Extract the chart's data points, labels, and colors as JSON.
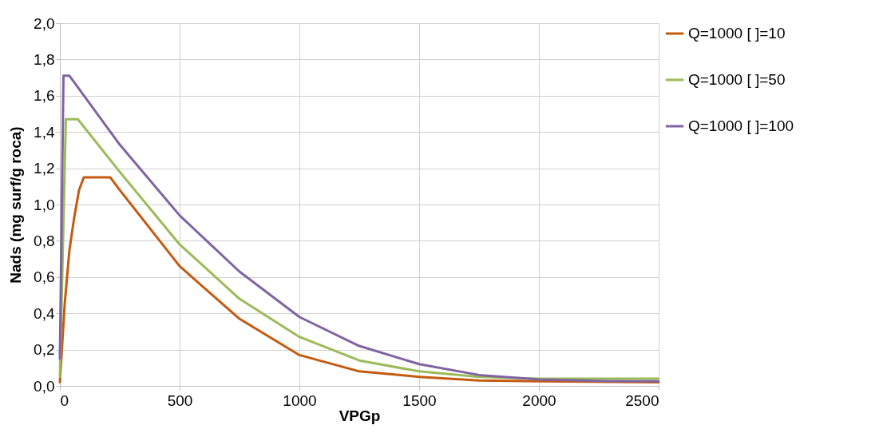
{
  "chart_data": {
    "type": "line",
    "xlabel": "VPGp",
    "ylabel": "Nads (mg surf/g roca)",
    "xlim": [
      0,
      2500
    ],
    "xticks": [
      0,
      500,
      1000,
      1500,
      2000,
      2500
    ],
    "ylim": [
      0,
      2.0
    ],
    "yticks": [
      {
        "value": 0,
        "label": "0,0"
      },
      {
        "value": 0.2,
        "label": "0,2"
      },
      {
        "value": 0.4,
        "label": "0,4"
      },
      {
        "value": 0.6,
        "label": "0,6"
      },
      {
        "value": 0.8,
        "label": "0,8"
      },
      {
        "value": 1.0,
        "label": "1,0"
      },
      {
        "value": 1.2,
        "label": "1,2"
      },
      {
        "value": 1.4,
        "label": "1,4"
      },
      {
        "value": 1.6,
        "label": "1,6"
      },
      {
        "value": 1.8,
        "label": "1,8"
      },
      {
        "value": 2.0,
        "label": "2,0"
      }
    ],
    "grid": true,
    "legend": "right",
    "marker": "none",
    "line_style": "solid",
    "series": [
      {
        "name": "Q=1000 [ ]=10",
        "color": "#c55a11",
        "x": [
          0,
          20,
          40,
          60,
          80,
          100,
          210,
          250,
          500,
          750,
          1000,
          1250,
          1500,
          1750,
          2000,
          2500
        ],
        "values": [
          0.02,
          0.45,
          0.75,
          0.93,
          1.08,
          1.15,
          1.15,
          1.08,
          0.66,
          0.37,
          0.17,
          0.08,
          0.05,
          0.03,
          0.025,
          0.02
        ]
      },
      {
        "name": "Q=1000 [ ]=50",
        "color": "#9bbb59",
        "x": [
          0,
          25,
          75,
          250,
          500,
          750,
          1000,
          1250,
          1500,
          1750,
          2000,
          2500
        ],
        "values": [
          0.05,
          1.47,
          1.47,
          1.18,
          0.78,
          0.48,
          0.27,
          0.14,
          0.08,
          0.05,
          0.04,
          0.04
        ]
      },
      {
        "name": "Q=1000 [ ]=100",
        "color": "#8064a2",
        "x": [
          0,
          15,
          40,
          250,
          500,
          750,
          1000,
          1250,
          1500,
          1750,
          2000,
          2250,
          2500
        ],
        "values": [
          0.15,
          1.71,
          1.71,
          1.33,
          0.94,
          0.63,
          0.38,
          0.22,
          0.12,
          0.06,
          0.035,
          0.027,
          0.025
        ]
      }
    ]
  }
}
